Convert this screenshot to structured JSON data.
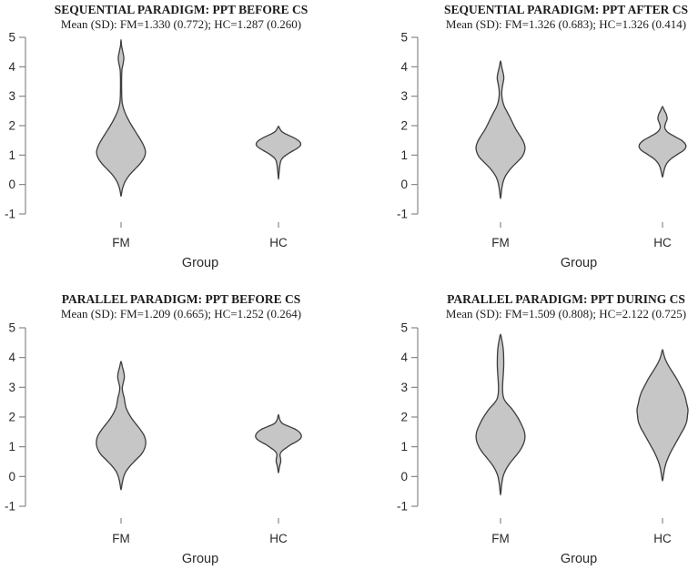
{
  "figure": {
    "background": "#ffffff",
    "violin_fill": "#c6c6c6",
    "violin_stroke": "#3c3c3c",
    "axis_color": "#7e7e7e",
    "text_color": "#1c1c1c"
  },
  "chart_data": [
    {
      "type": "violin",
      "position": "top-left",
      "title": "SEQUENTIAL PARADIGM: PPT BEFORE CS",
      "subtitle": "Mean (SD): FM=1.330 (0.772); HC=1.287 (0.260)",
      "stats": {
        "FM_mean": "1.330",
        "FM_sd": "0.772",
        "HC_mean": "1.287",
        "HC_sd": "0.260"
      },
      "xlabel": "Group",
      "categories": [
        "FM",
        "HC"
      ],
      "ylim": [
        -1,
        5
      ],
      "yticks": [
        5,
        4,
        3,
        2,
        1,
        0,
        -1
      ],
      "grid": false,
      "violins": [
        {
          "category": "FM",
          "profile": [
            [
              4.92,
              0
            ],
            [
              4.72,
              0.02
            ],
            [
              4.5,
              0.07
            ],
            [
              4.3,
              0.11
            ],
            [
              4.1,
              0.08
            ],
            [
              3.9,
              0.035
            ],
            [
              3.6,
              0.022
            ],
            [
              3.3,
              0.022
            ],
            [
              3.0,
              0.028
            ],
            [
              2.75,
              0.05
            ],
            [
              2.5,
              0.13
            ],
            [
              2.25,
              0.26
            ],
            [
              2.0,
              0.42
            ],
            [
              1.75,
              0.6
            ],
            [
              1.5,
              0.78
            ],
            [
              1.3,
              0.9
            ],
            [
              1.1,
              0.96
            ],
            [
              0.9,
              0.9
            ],
            [
              0.7,
              0.74
            ],
            [
              0.5,
              0.52
            ],
            [
              0.3,
              0.31
            ],
            [
              0.1,
              0.16
            ],
            [
              -0.1,
              0.07
            ],
            [
              -0.25,
              0.03
            ],
            [
              -0.4,
              0
            ]
          ]
        },
        {
          "category": "HC",
          "profile": [
            [
              1.98,
              0
            ],
            [
              1.9,
              0.05
            ],
            [
              1.8,
              0.13
            ],
            [
              1.7,
              0.33
            ],
            [
              1.6,
              0.58
            ],
            [
              1.5,
              0.77
            ],
            [
              1.4,
              0.87
            ],
            [
              1.3,
              0.84
            ],
            [
              1.2,
              0.68
            ],
            [
              1.1,
              0.48
            ],
            [
              1.0,
              0.3
            ],
            [
              0.9,
              0.16
            ],
            [
              0.8,
              0.09
            ],
            [
              0.65,
              0.055
            ],
            [
              0.5,
              0.035
            ],
            [
              0.35,
              0.018
            ],
            [
              0.18,
              0
            ]
          ]
        }
      ]
    },
    {
      "type": "violin",
      "position": "top-right",
      "title": "SEQUENTIAL PARADIGM: PPT AFTER CS",
      "subtitle": "Mean (SD): FM=1.326 (0.683); HC=1.326 (0.414)",
      "stats": {
        "FM_mean": "1.326",
        "FM_sd": "0.683",
        "HC_mean": "1.326",
        "HC_sd": "0.414"
      },
      "xlabel": "Group",
      "categories": [
        "FM",
        "HC"
      ],
      "ylim": [
        -1,
        5
      ],
      "yticks": [
        5,
        4,
        3,
        2,
        1,
        0,
        -1
      ],
      "grid": false,
      "violins": [
        {
          "category": "FM",
          "profile": [
            [
              4.2,
              0
            ],
            [
              4.0,
              0.045
            ],
            [
              3.8,
              0.1
            ],
            [
              3.62,
              0.13
            ],
            [
              3.45,
              0.1
            ],
            [
              3.25,
              0.06
            ],
            [
              3.05,
              0.05
            ],
            [
              2.85,
              0.08
            ],
            [
              2.65,
              0.15
            ],
            [
              2.45,
              0.27
            ],
            [
              2.25,
              0.39
            ],
            [
              2.05,
              0.5
            ],
            [
              1.85,
              0.62
            ],
            [
              1.65,
              0.77
            ],
            [
              1.45,
              0.9
            ],
            [
              1.28,
              0.96
            ],
            [
              1.12,
              0.94
            ],
            [
              0.95,
              0.85
            ],
            [
              0.78,
              0.67
            ],
            [
              0.6,
              0.46
            ],
            [
              0.42,
              0.29
            ],
            [
              0.25,
              0.17
            ],
            [
              0.05,
              0.09
            ],
            [
              -0.2,
              0.04
            ],
            [
              -0.48,
              0
            ]
          ]
        },
        {
          "category": "HC",
          "profile": [
            [
              2.65,
              0
            ],
            [
              2.52,
              0.07
            ],
            [
              2.38,
              0.15
            ],
            [
              2.22,
              0.18
            ],
            [
              2.08,
              0.12
            ],
            [
              1.93,
              0.09
            ],
            [
              1.78,
              0.2
            ],
            [
              1.63,
              0.48
            ],
            [
              1.48,
              0.78
            ],
            [
              1.32,
              0.92
            ],
            [
              1.17,
              0.84
            ],
            [
              1.02,
              0.58
            ],
            [
              0.87,
              0.33
            ],
            [
              0.72,
              0.17
            ],
            [
              0.57,
              0.09
            ],
            [
              0.4,
              0.04
            ],
            [
              0.25,
              0
            ]
          ]
        }
      ]
    },
    {
      "type": "violin",
      "position": "bottom-left",
      "title": "PARALLEL PARADIGM: PPT BEFORE CS",
      "subtitle": "Mean (SD): FM=1.209 (0.665); HC=1.252 (0.264)",
      "stats": {
        "FM_mean": "1.209",
        "FM_sd": "0.665",
        "HC_mean": "1.252",
        "HC_sd": "0.264"
      },
      "xlabel": "Group",
      "categories": [
        "FM",
        "HC"
      ],
      "ylim": [
        -1,
        5
      ],
      "yticks": [
        5,
        4,
        3,
        2,
        1,
        0,
        -1
      ],
      "grid": false,
      "violins": [
        {
          "category": "FM",
          "profile": [
            [
              3.87,
              0
            ],
            [
              3.68,
              0.055
            ],
            [
              3.5,
              0.11
            ],
            [
              3.33,
              0.13
            ],
            [
              3.16,
              0.09
            ],
            [
              3.0,
              0.05
            ],
            [
              2.84,
              0.065
            ],
            [
              2.66,
              0.12
            ],
            [
              2.5,
              0.15
            ],
            [
              2.33,
              0.19
            ],
            [
              2.15,
              0.28
            ],
            [
              1.95,
              0.42
            ],
            [
              1.75,
              0.6
            ],
            [
              1.55,
              0.78
            ],
            [
              1.35,
              0.92
            ],
            [
              1.15,
              0.97
            ],
            [
              0.95,
              0.93
            ],
            [
              0.75,
              0.8
            ],
            [
              0.55,
              0.57
            ],
            [
              0.35,
              0.35
            ],
            [
              0.15,
              0.18
            ],
            [
              -0.05,
              0.09
            ],
            [
              -0.25,
              0.04
            ],
            [
              -0.45,
              0
            ]
          ]
        },
        {
          "category": "HC",
          "profile": [
            [
              2.08,
              0
            ],
            [
              1.98,
              0.03
            ],
            [
              1.88,
              0.07
            ],
            [
              1.78,
              0.16
            ],
            [
              1.68,
              0.42
            ],
            [
              1.58,
              0.68
            ],
            [
              1.48,
              0.83
            ],
            [
              1.37,
              0.9
            ],
            [
              1.27,
              0.86
            ],
            [
              1.17,
              0.7
            ],
            [
              1.07,
              0.48
            ],
            [
              0.98,
              0.33
            ],
            [
              0.9,
              0.2
            ],
            [
              0.82,
              0.1
            ],
            [
              0.72,
              0.06
            ],
            [
              0.6,
              0.085
            ],
            [
              0.5,
              0.09
            ],
            [
              0.4,
              0.06
            ],
            [
              0.28,
              0.03
            ],
            [
              0.12,
              0
            ]
          ]
        }
      ]
    },
    {
      "type": "violin",
      "position": "bottom-right",
      "title": "PARALLEL PARADIGM: PPT DURING CS",
      "subtitle": "Mean (SD): FM=1.509 (0.808); HC=2.122 (0.725)",
      "stats": {
        "FM_mean": "1.509",
        "FM_sd": "0.808",
        "HC_mean": "2.122",
        "HC_sd": "0.725"
      },
      "xlabel": "Group",
      "categories": [
        "FM",
        "HC"
      ],
      "ylim": [
        -1,
        5
      ],
      "yticks": [
        5,
        4,
        3,
        2,
        1,
        0,
        -1
      ],
      "grid": false,
      "violins": [
        {
          "category": "FM",
          "profile": [
            [
              4.78,
              0
            ],
            [
              4.6,
              0.05
            ],
            [
              4.4,
              0.09
            ],
            [
              4.2,
              0.115
            ],
            [
              3.95,
              0.125
            ],
            [
              3.7,
              0.125
            ],
            [
              3.45,
              0.11
            ],
            [
              3.2,
              0.09
            ],
            [
              2.98,
              0.08
            ],
            [
              2.78,
              0.09
            ],
            [
              2.6,
              0.14
            ],
            [
              2.45,
              0.26
            ],
            [
              2.3,
              0.42
            ],
            [
              2.15,
              0.55
            ],
            [
              1.95,
              0.7
            ],
            [
              1.75,
              0.82
            ],
            [
              1.55,
              0.92
            ],
            [
              1.38,
              0.96
            ],
            [
              1.2,
              0.94
            ],
            [
              1.0,
              0.85
            ],
            [
              0.8,
              0.7
            ],
            [
              0.6,
              0.51
            ],
            [
              0.4,
              0.33
            ],
            [
              0.2,
              0.19
            ],
            [
              0.0,
              0.1
            ],
            [
              -0.3,
              0.04
            ],
            [
              -0.62,
              0
            ]
          ]
        },
        {
          "category": "HC",
          "profile": [
            [
              4.27,
              0
            ],
            [
              4.1,
              0.05
            ],
            [
              3.92,
              0.12
            ],
            [
              3.72,
              0.24
            ],
            [
              3.5,
              0.4
            ],
            [
              3.28,
              0.56
            ],
            [
              3.05,
              0.7
            ],
            [
              2.85,
              0.82
            ],
            [
              2.65,
              0.9
            ],
            [
              2.45,
              0.95
            ],
            [
              2.25,
              1.0
            ],
            [
              2.05,
              0.98
            ],
            [
              1.85,
              0.95
            ],
            [
              1.65,
              0.86
            ],
            [
              1.45,
              0.73
            ],
            [
              1.25,
              0.6
            ],
            [
              1.05,
              0.47
            ],
            [
              0.85,
              0.34
            ],
            [
              0.65,
              0.23
            ],
            [
              0.45,
              0.14
            ],
            [
              0.25,
              0.08
            ],
            [
              0.05,
              0.04
            ],
            [
              -0.15,
              0
            ]
          ]
        }
      ]
    }
  ]
}
